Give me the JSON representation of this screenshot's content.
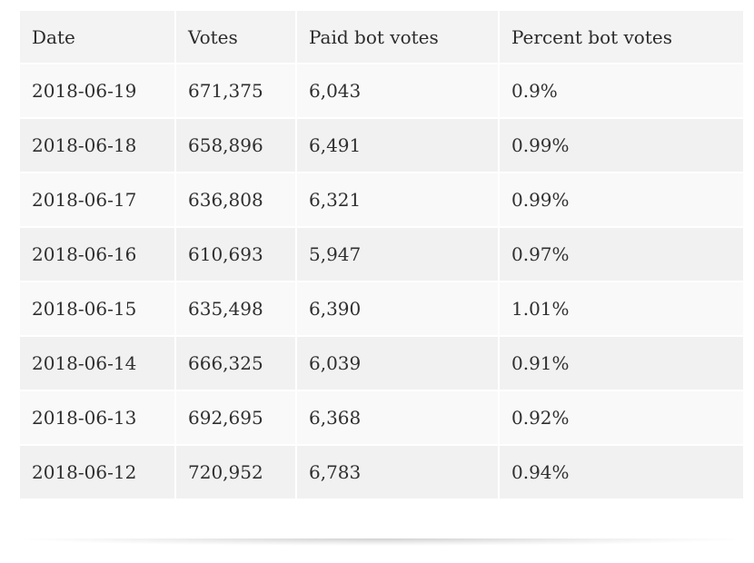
{
  "table": {
    "headers": [
      "Date",
      "Votes",
      "Paid bot votes",
      "Percent bot votes"
    ],
    "rows": [
      [
        "2018-06-19",
        "671,375",
        "6,043",
        "0.9%"
      ],
      [
        "2018-06-18",
        "658,896",
        "6,491",
        "0.99%"
      ],
      [
        "2018-06-17",
        "636,808",
        "6,321",
        "0.99%"
      ],
      [
        "2018-06-16",
        "610,693",
        "5,947",
        "0.97%"
      ],
      [
        "2018-06-15",
        "635,498",
        "6,390",
        "1.01%"
      ],
      [
        "2018-06-14",
        "666,325",
        "6,039",
        "0.91%"
      ],
      [
        "2018-06-13",
        "692,695",
        "6,368",
        "0.92%"
      ],
      [
        "2018-06-12",
        "720,952",
        "6,783",
        "0.94%"
      ]
    ]
  }
}
